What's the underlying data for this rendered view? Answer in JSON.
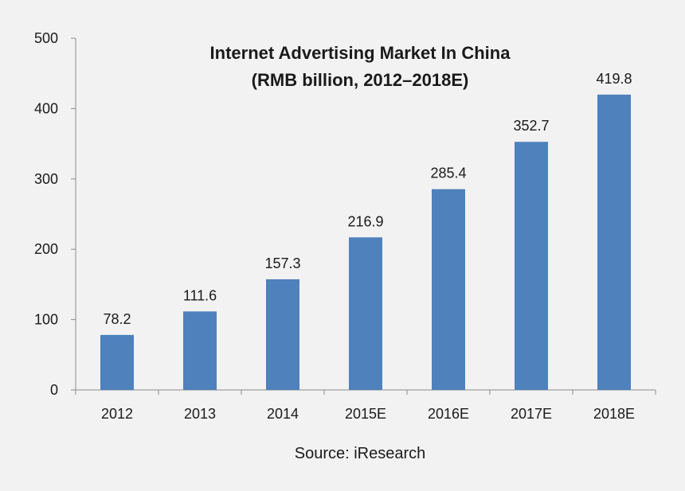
{
  "chart_data": {
    "type": "bar",
    "title": "Internet Advertising Market In China",
    "subtitle": "(RMB billion, 2012–2018E)",
    "categories": [
      "2012",
      "2013",
      "2014",
      "2015E",
      "2016E",
      "2017E",
      "2018E"
    ],
    "values": [
      78.2,
      111.6,
      157.3,
      216.9,
      285.4,
      352.7,
      419.8
    ],
    "data_labels": [
      "78.2",
      "111.6",
      "157.3",
      "216.9",
      "285.4",
      "352.7",
      "419.8"
    ],
    "ylim": [
      0,
      500
    ],
    "yticks": [
      0,
      100,
      200,
      300,
      400,
      500
    ],
    "xlabel": "",
    "ylabel": "",
    "grid": false,
    "bar_color": "#4f81bd",
    "source": "Source: iResearch"
  }
}
